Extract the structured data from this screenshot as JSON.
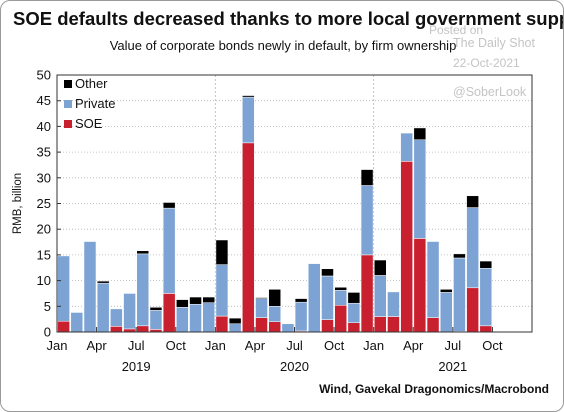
{
  "header": {
    "title": "SOE defaults decreased thanks to more local government support",
    "subtitle": "Value of corporate bonds newly in default, by firm ownership"
  },
  "watermark": {
    "posted_on": "Posted on",
    "publisher": "The Daily Shot",
    "date": "22-Oct-2021",
    "handle": "@SoberLook"
  },
  "source": "Wind, Gavekal Dragonomics/Macrobond",
  "colors": {
    "soe": "#c8202f",
    "private": "#7ca3d4",
    "other": "#000000"
  },
  "chart_data": {
    "type": "bar",
    "stacked": true,
    "ylabel": "RMB, billion",
    "ylim": [
      0,
      50
    ],
    "yticks": [
      0,
      5,
      10,
      15,
      20,
      25,
      30,
      35,
      40,
      45,
      50
    ],
    "x_tick_labels": [
      "Jan",
      "Apr",
      "Jul",
      "Oct",
      "Jan",
      "Apr",
      "Jul",
      "Oct",
      "Jan",
      "Apr",
      "Jul",
      "Oct"
    ],
    "year_labels": [
      "2019",
      "2020",
      "2021"
    ],
    "legend": {
      "placement": "top-left",
      "entries": [
        "Other",
        "Private",
        "SOE"
      ]
    },
    "categories": [
      "2019-01",
      "2019-02",
      "2019-03",
      "2019-04",
      "2019-05",
      "2019-06",
      "2019-07",
      "2019-08",
      "2019-09",
      "2019-10",
      "2019-11",
      "2019-12",
      "2020-01",
      "2020-02",
      "2020-03",
      "2020-04",
      "2020-05",
      "2020-06",
      "2020-07",
      "2020-08",
      "2020-09",
      "2020-10",
      "2020-11",
      "2020-12",
      "2021-01",
      "2021-02",
      "2021-03",
      "2021-04",
      "2021-05",
      "2021-06",
      "2021-07",
      "2021-08",
      "2021-09"
    ],
    "series": [
      {
        "name": "SOE",
        "values": [
          2.1,
          0,
          0,
          0,
          1.1,
          0.6,
          1.2,
          0.5,
          7.5,
          0,
          0,
          0,
          3.1,
          0,
          36.8,
          2.8,
          2.0,
          0,
          0.2,
          0,
          2.4,
          5.2,
          1.8,
          15.0,
          3.0,
          3.0,
          33.2,
          18.2,
          2.8,
          0,
          0.1,
          8.6,
          1.2
        ]
      },
      {
        "name": "Private",
        "values": [
          12.7,
          3.8,
          17.6,
          9.5,
          3.4,
          6.9,
          14.0,
          3.7,
          16.6,
          4.8,
          5.4,
          5.7,
          10.0,
          1.6,
          8.9,
          3.7,
          3.0,
          1.6,
          5.6,
          13.3,
          8.5,
          2.9,
          3.8,
          13.5,
          8.0,
          4.8,
          5.5,
          19.2,
          14.8,
          7.7,
          14.3,
          15.6,
          11.2
        ]
      },
      {
        "name": "Other",
        "values": [
          0,
          0,
          0,
          0.4,
          0,
          0,
          0.6,
          0.6,
          1.1,
          1.5,
          1.4,
          1.1,
          4.8,
          1.1,
          0.3,
          0.2,
          3.3,
          0,
          0.7,
          0,
          1.4,
          0.6,
          2.1,
          3.1,
          3.0,
          0,
          0,
          2.3,
          0,
          0.6,
          0.8,
          2.3,
          1.4
        ]
      }
    ]
  }
}
